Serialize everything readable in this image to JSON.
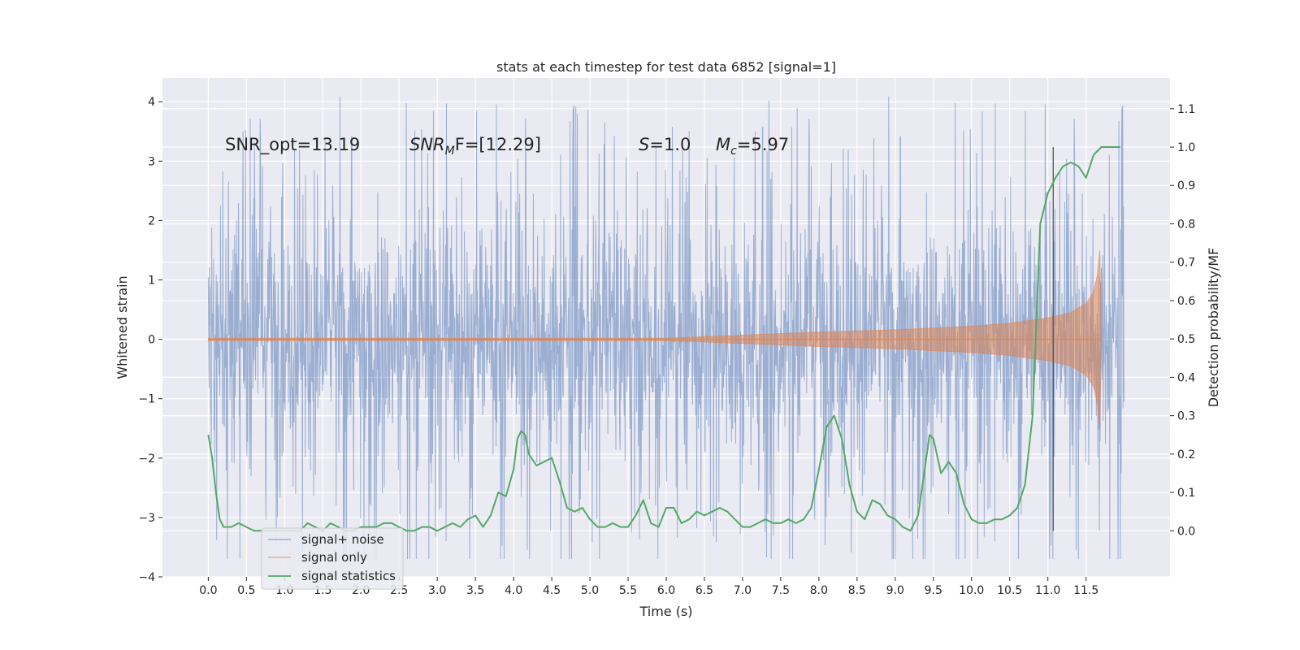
{
  "chart_data": {
    "type": "line",
    "title": "stats at each timestep for test data 6852 [signal=1]",
    "xlabel": "Time (s)",
    "ylabel": "Whitened strain",
    "y2label": "Detection probability/MF",
    "xlim": [
      -0.6,
      12.6
    ],
    "ylim": [
      -4.0,
      4.4
    ],
    "y2lim": [
      -0.12,
      1.18
    ],
    "xticks": [
      0.0,
      0.5,
      1.0,
      1.5,
      2.0,
      2.5,
      3.0,
      3.5,
      4.0,
      4.5,
      5.0,
      5.5,
      6.0,
      6.5,
      7.0,
      7.5,
      8.0,
      8.5,
      9.0,
      9.5,
      10.0,
      10.5,
      11.0,
      11.5
    ],
    "xtick_labels": [
      "0.0",
      "0.5",
      "1.0",
      "1.5",
      "2.0",
      "2.5",
      "3.0",
      "3.5",
      "4.0",
      "4.5",
      "5.0",
      "5.5",
      "6.0",
      "6.5",
      "7.0",
      "7.5",
      "8.0",
      "8.5",
      "9.0",
      "9.5",
      "10.0",
      "10.5",
      "11.0",
      "11.5"
    ],
    "yticks": [
      -4,
      -3,
      -2,
      -1,
      0,
      1,
      2,
      3,
      4
    ],
    "ytick_labels": [
      "−4",
      "−3",
      "−2",
      "−1",
      "0",
      "1",
      "2",
      "3",
      "4"
    ],
    "y2ticks": [
      0.0,
      0.1,
      0.2,
      0.3,
      0.4,
      0.5,
      0.6,
      0.7,
      0.8,
      0.9,
      1.0,
      1.1
    ],
    "y2tick_labels": [
      "0.0",
      "0.1",
      "0.2",
      "0.3",
      "0.4",
      "0.5",
      "0.6",
      "0.7",
      "0.8",
      "0.9",
      "1.0",
      "1.1"
    ],
    "grid": true,
    "legend_position": "lower-left",
    "series": [
      {
        "name": "signal+ noise",
        "color": "#4c72b0",
        "x_range": [
          0.0,
          12.0
        ],
        "envelope_typical": [
          -1.6,
          1.6
        ],
        "max": 4.1,
        "min": -3.7
      },
      {
        "name": "signal only",
        "color": "#dd8452",
        "envelope_x": [
          0.0,
          6.0,
          7.0,
          8.0,
          9.0,
          10.0,
          10.5,
          11.0,
          11.3,
          11.5,
          11.6,
          11.65,
          11.68,
          11.7
        ],
        "envelope_amp": [
          0.02,
          0.02,
          0.07,
          0.12,
          0.16,
          0.22,
          0.27,
          0.36,
          0.45,
          0.6,
          0.8,
          1.1,
          1.5,
          0.05
        ]
      },
      {
        "name": "signal statistics",
        "color": "#55a868",
        "axis": "right",
        "x": [
          0.0,
          0.05,
          0.1,
          0.15,
          0.2,
          0.3,
          0.4,
          0.5,
          0.6,
          0.7,
          0.8,
          0.9,
          1.0,
          1.1,
          1.2,
          1.3,
          1.4,
          1.5,
          1.6,
          1.7,
          1.8,
          1.9,
          2.0,
          2.1,
          2.2,
          2.3,
          2.4,
          2.5,
          2.6,
          2.7,
          2.8,
          2.9,
          3.0,
          3.1,
          3.2,
          3.3,
          3.4,
          3.5,
          3.6,
          3.7,
          3.8,
          3.9,
          4.0,
          4.05,
          4.1,
          4.15,
          4.2,
          4.3,
          4.4,
          4.5,
          4.6,
          4.7,
          4.8,
          4.9,
          5.0,
          5.1,
          5.2,
          5.3,
          5.4,
          5.5,
          5.6,
          5.7,
          5.8,
          5.9,
          6.0,
          6.1,
          6.2,
          6.3,
          6.4,
          6.5,
          6.6,
          6.7,
          6.8,
          6.9,
          7.0,
          7.1,
          7.2,
          7.3,
          7.4,
          7.5,
          7.6,
          7.7,
          7.8,
          7.9,
          8.0,
          8.1,
          8.2,
          8.3,
          8.4,
          8.5,
          8.6,
          8.7,
          8.8,
          8.9,
          9.0,
          9.1,
          9.2,
          9.3,
          9.4,
          9.45,
          9.5,
          9.6,
          9.7,
          9.8,
          9.9,
          10.0,
          10.1,
          10.2,
          10.3,
          10.4,
          10.5,
          10.6,
          10.7,
          10.8,
          10.9,
          11.0,
          11.1,
          11.2,
          11.3,
          11.4,
          11.5,
          11.6,
          11.7,
          11.8,
          11.9,
          11.95
        ],
        "y": [
          0.25,
          0.19,
          0.1,
          0.03,
          0.01,
          0.01,
          0.02,
          0.01,
          0.0,
          0.0,
          0.0,
          0.0,
          0.0,
          0.0,
          0.0,
          0.02,
          0.01,
          0.0,
          0.02,
          0.01,
          0.0,
          0.0,
          0.01,
          0.01,
          0.01,
          0.02,
          0.02,
          0.01,
          0.0,
          0.0,
          0.01,
          0.01,
          0.0,
          0.01,
          0.02,
          0.01,
          0.03,
          0.04,
          0.01,
          0.04,
          0.1,
          0.09,
          0.16,
          0.24,
          0.26,
          0.25,
          0.2,
          0.17,
          0.18,
          0.19,
          0.13,
          0.06,
          0.05,
          0.06,
          0.03,
          0.01,
          0.01,
          0.02,
          0.01,
          0.01,
          0.04,
          0.08,
          0.02,
          0.01,
          0.06,
          0.06,
          0.02,
          0.03,
          0.05,
          0.04,
          0.05,
          0.06,
          0.05,
          0.03,
          0.01,
          0.01,
          0.02,
          0.03,
          0.02,
          0.02,
          0.03,
          0.02,
          0.03,
          0.06,
          0.16,
          0.27,
          0.3,
          0.24,
          0.12,
          0.05,
          0.03,
          0.08,
          0.07,
          0.04,
          0.03,
          0.01,
          0.0,
          0.04,
          0.18,
          0.25,
          0.24,
          0.15,
          0.18,
          0.15,
          0.07,
          0.03,
          0.02,
          0.02,
          0.03,
          0.03,
          0.04,
          0.06,
          0.12,
          0.3,
          0.8,
          0.88,
          0.92,
          0.95,
          0.96,
          0.95,
          0.92,
          0.98,
          1.0,
          1.0,
          1.0,
          1.0
        ]
      }
    ],
    "vline": {
      "x": 11.07,
      "color": "#555555"
    },
    "annotations": {
      "snr_opt": "SNR_opt=13.19",
      "snr_mf_base": "SNR",
      "snr_mf_sub": "M",
      "snr_mf_tail": "F=[12.29]",
      "s_base": "S",
      "s_value": "=1.0",
      "mc_base": "M",
      "mc_sub": "c",
      "mc_value": "=5.97"
    }
  }
}
